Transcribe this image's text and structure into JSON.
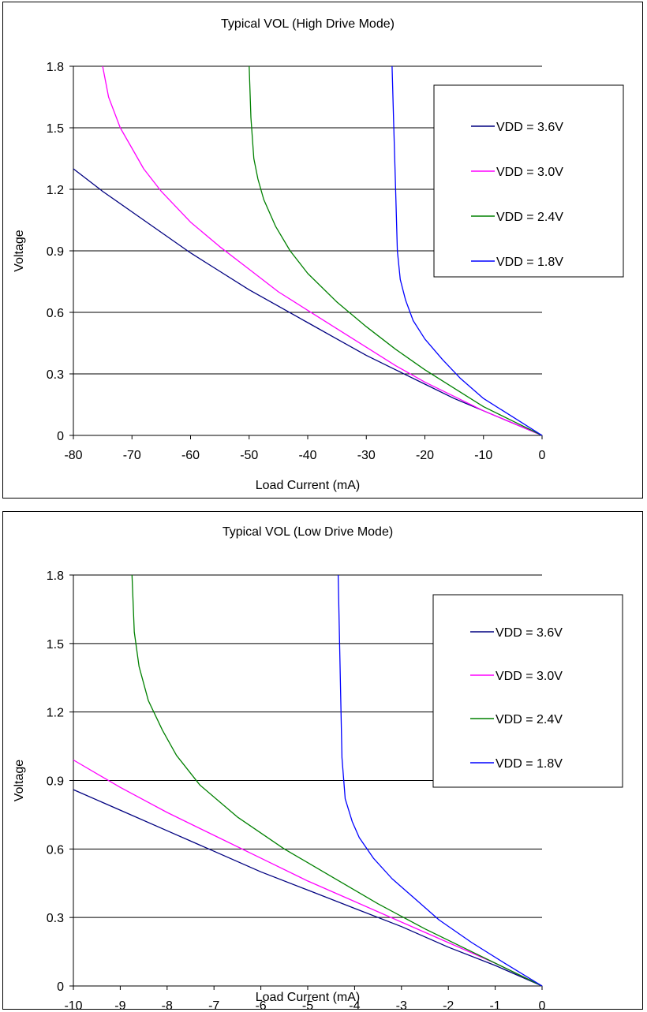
{
  "chart_data": [
    {
      "type": "line",
      "title": "Typical VOL (High Drive Mode)",
      "xlabel": "Load Current (mA)",
      "ylabel": "Voltage",
      "xlim": [
        -80,
        0
      ],
      "ylim": [
        0,
        1.8
      ],
      "x_ticks": [
        "-80",
        "-70",
        "-60",
        "-50",
        "-40",
        "-30",
        "-20",
        "-10",
        "0"
      ],
      "y_ticks": [
        "0",
        "0.3",
        "0.6",
        "0.9",
        "1.2",
        "1.5",
        "1.8"
      ],
      "grid": "horizontal",
      "legend_position": "top-right",
      "series": [
        {
          "name": "VDD = 3.6V",
          "color": "#000080",
          "points": [
            [
              -80,
              1.3
            ],
            [
              -75,
              1.19
            ],
            [
              -70,
              1.09
            ],
            [
              -65,
              0.99
            ],
            [
              -60,
              0.89
            ],
            [
              -55,
              0.8
            ],
            [
              -50,
              0.71
            ],
            [
              -45,
              0.63
            ],
            [
              -40,
              0.55
            ],
            [
              -35,
              0.47
            ],
            [
              -30,
              0.39
            ],
            [
              -25,
              0.32
            ],
            [
              -20,
              0.25
            ],
            [
              -15,
              0.18
            ],
            [
              -10,
              0.12
            ],
            [
              -5,
              0.06
            ],
            [
              0,
              0
            ]
          ]
        },
        {
          "name": "VDD = 3.0V",
          "color": "#ff00ff",
          "points": [
            [
              -75,
              1.8
            ],
            [
              -74,
              1.65
            ],
            [
              -72,
              1.5
            ],
            [
              -70,
              1.4
            ],
            [
              -68,
              1.3
            ],
            [
              -65,
              1.19
            ],
            [
              -60,
              1.04
            ],
            [
              -55,
              0.92
            ],
            [
              -50,
              0.81
            ],
            [
              -45,
              0.7
            ],
            [
              -40,
              0.61
            ],
            [
              -35,
              0.52
            ],
            [
              -30,
              0.43
            ],
            [
              -25,
              0.34
            ],
            [
              -20,
              0.26
            ],
            [
              -15,
              0.19
            ],
            [
              -10,
              0.12
            ],
            [
              -5,
              0.06
            ],
            [
              0,
              0
            ]
          ]
        },
        {
          "name": "VDD = 2.4V",
          "color": "#008000",
          "points": [
            [
              -50,
              1.8
            ],
            [
              -49.7,
              1.55
            ],
            [
              -49.2,
              1.35
            ],
            [
              -48.5,
              1.25
            ],
            [
              -47.5,
              1.15
            ],
            [
              -45.5,
              1.02
            ],
            [
              -43,
              0.9
            ],
            [
              -40,
              0.79
            ],
            [
              -35,
              0.65
            ],
            [
              -30,
              0.53
            ],
            [
              -25,
              0.42
            ],
            [
              -20,
              0.32
            ],
            [
              -15,
              0.23
            ],
            [
              -10,
              0.14
            ],
            [
              -5,
              0.07
            ],
            [
              0,
              0
            ]
          ]
        },
        {
          "name": "VDD = 1.8V",
          "color": "#0000ff",
          "points": [
            [
              -25.6,
              1.8
            ],
            [
              -25.3,
              1.5
            ],
            [
              -25.0,
              1.2
            ],
            [
              -24.7,
              0.9
            ],
            [
              -24.2,
              0.76
            ],
            [
              -23.3,
              0.66
            ],
            [
              -22,
              0.56
            ],
            [
              -20,
              0.47
            ],
            [
              -17,
              0.37
            ],
            [
              -14,
              0.28
            ],
            [
              -10,
              0.18
            ],
            [
              -5,
              0.09
            ],
            [
              0,
              0
            ]
          ]
        }
      ]
    },
    {
      "type": "line",
      "title": "Typical VOL (Low Drive Mode)",
      "xlabel": "Load Current (mA)",
      "ylabel": "Voltage",
      "xlim": [
        -10,
        0
      ],
      "ylim": [
        0,
        1.8
      ],
      "x_ticks": [
        "-10",
        "-9",
        "-8",
        "-7",
        "-6",
        "-5",
        "-4",
        "-3",
        "-2",
        "-1",
        "0"
      ],
      "y_ticks": [
        "0",
        "0.3",
        "0.6",
        "0.9",
        "1.2",
        "1.5",
        "1.8"
      ],
      "grid": "horizontal",
      "legend_position": "top-right",
      "series": [
        {
          "name": "VDD = 3.6V",
          "color": "#000080",
          "points": [
            [
              -10,
              0.86
            ],
            [
              -9,
              0.77
            ],
            [
              -8,
              0.68
            ],
            [
              -7,
              0.59
            ],
            [
              -6,
              0.5
            ],
            [
              -5,
              0.42
            ],
            [
              -4,
              0.34
            ],
            [
              -3,
              0.26
            ],
            [
              -2,
              0.17
            ],
            [
              -1,
              0.09
            ],
            [
              0,
              0
            ]
          ]
        },
        {
          "name": "VDD = 3.0V",
          "color": "#ff00ff",
          "points": [
            [
              -10,
              0.99
            ],
            [
              -9,
              0.87
            ],
            [
              -8,
              0.76
            ],
            [
              -7,
              0.66
            ],
            [
              -6,
              0.56
            ],
            [
              -5,
              0.46
            ],
            [
              -4,
              0.37
            ],
            [
              -3,
              0.28
            ],
            [
              -2,
              0.19
            ],
            [
              -1,
              0.1
            ],
            [
              0,
              0
            ]
          ]
        },
        {
          "name": "VDD = 2.4V",
          "color": "#008000",
          "points": [
            [
              -8.75,
              1.8
            ],
            [
              -8.7,
              1.55
            ],
            [
              -8.6,
              1.4
            ],
            [
              -8.4,
              1.25
            ],
            [
              -8.1,
              1.12
            ],
            [
              -7.8,
              1.01
            ],
            [
              -7.3,
              0.88
            ],
            [
              -6.5,
              0.74
            ],
            [
              -5.5,
              0.6
            ],
            [
              -4.5,
              0.48
            ],
            [
              -3.5,
              0.36
            ],
            [
              -2.5,
              0.25
            ],
            [
              -1.5,
              0.15
            ],
            [
              -0.5,
              0.05
            ],
            [
              0,
              0
            ]
          ]
        },
        {
          "name": "VDD = 1.8V",
          "color": "#0000ff",
          "points": [
            [
              -4.35,
              1.8
            ],
            [
              -4.32,
              1.5
            ],
            [
              -4.3,
              1.3
            ],
            [
              -4.27,
              1.0
            ],
            [
              -4.2,
              0.82
            ],
            [
              -4.05,
              0.72
            ],
            [
              -3.9,
              0.65
            ],
            [
              -3.6,
              0.56
            ],
            [
              -3.2,
              0.47
            ],
            [
              -2.7,
              0.38
            ],
            [
              -2.2,
              0.29
            ],
            [
              -1.5,
              0.19
            ],
            [
              -0.8,
              0.1
            ],
            [
              0,
              0
            ]
          ]
        }
      ]
    }
  ]
}
